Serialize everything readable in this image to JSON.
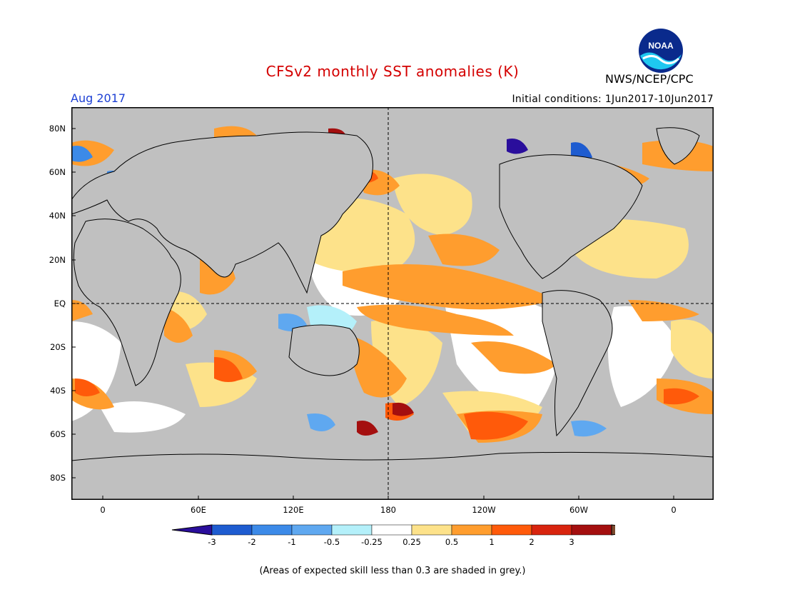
{
  "header": {
    "title": "CFSv2 monthly SST anomalies (K)",
    "org": "NWS/NCEP/CPC",
    "month": "Aug 2017",
    "initial_conditions": "Initial conditions: 1Jun2017-10Jun2017",
    "logo_text": "NOAA"
  },
  "map": {
    "lat_labels": [
      "80N",
      "60N",
      "40N",
      "20N",
      "EQ",
      "20S",
      "40S",
      "60S",
      "80S"
    ],
    "lon_labels": [
      "0",
      "60E",
      "120E",
      "180",
      "120W",
      "60W",
      "0"
    ],
    "land_color": "#c0c0c0",
    "missing_color": "#c0c0c0"
  },
  "colorbar": {
    "labels": [
      "-3",
      "-2",
      "-1",
      "-0.5",
      "-0.25",
      "0.25",
      "0.5",
      "1",
      "2",
      "3"
    ],
    "colors": [
      "#2a0e9c",
      "#1e5cd0",
      "#3c8ae8",
      "#5fa8f0",
      "#b4f0fa",
      "#ffffff",
      "#fde28a",
      "#ff9d2e",
      "#ff5a0a",
      "#d8240e",
      "#a40f0f",
      "#7a4a2e"
    ]
  },
  "footer": {
    "note": "(Areas of expected skill less than 0.3 are shaded in grey.)"
  }
}
